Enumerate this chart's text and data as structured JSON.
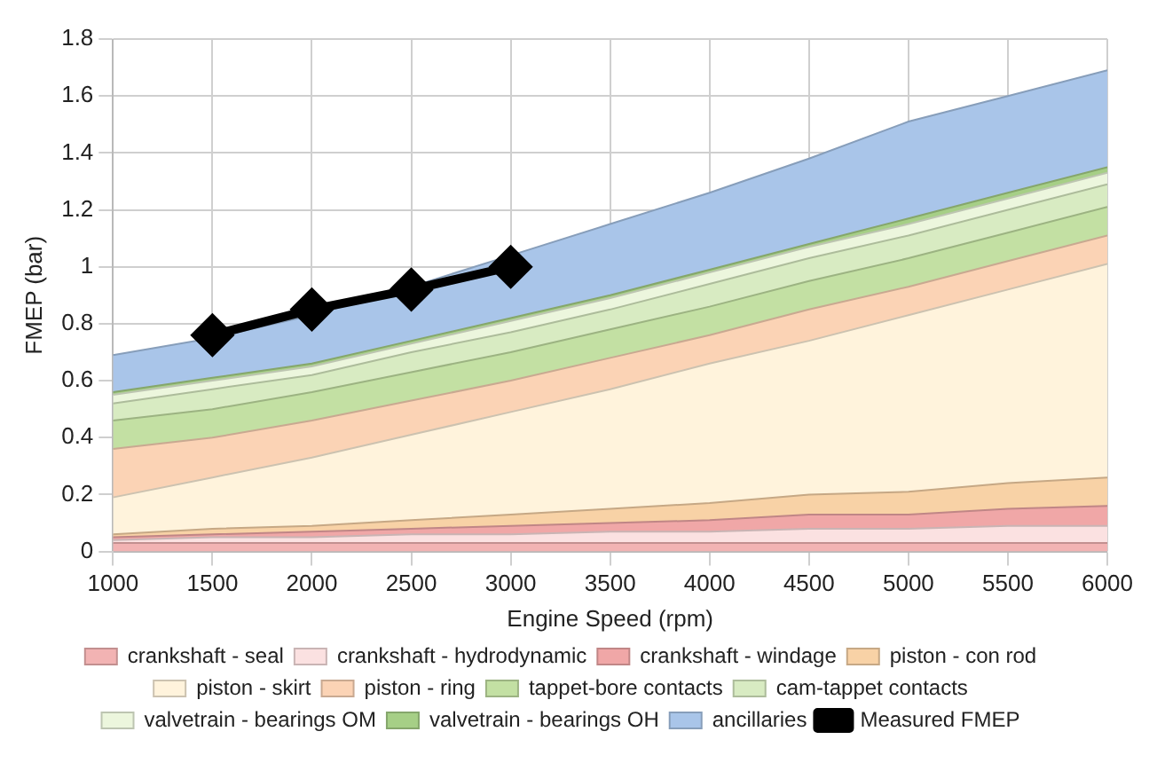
{
  "chart_data": {
    "type": "area",
    "stacked": true,
    "xlabel": "Engine Speed (rpm)",
    "ylabel": "FMEP (bar)",
    "x": [
      1000,
      1500,
      2000,
      2500,
      3000,
      3500,
      4000,
      4500,
      5000,
      5500,
      6000
    ],
    "xlim": [
      1000,
      6000
    ],
    "xticks": [
      1000,
      1500,
      2000,
      2500,
      3000,
      3500,
      4000,
      4500,
      5000,
      5500,
      6000
    ],
    "ylim": [
      0,
      1.8
    ],
    "yticks": [
      0,
      0.2,
      0.4,
      0.6,
      0.8,
      1,
      1.2,
      1.4,
      1.6,
      1.8
    ],
    "grid": true,
    "legend": "bottom",
    "series": [
      {
        "name": "crankshaft - seal",
        "color": "#f2b3b3",
        "values": [
          0.03,
          0.03,
          0.03,
          0.03,
          0.03,
          0.03,
          0.03,
          0.03,
          0.03,
          0.03,
          0.03
        ]
      },
      {
        "name": "crankshaft - hydrodynamic",
        "color": "#fbe1e1",
        "values": [
          0.01,
          0.02,
          0.02,
          0.03,
          0.03,
          0.04,
          0.04,
          0.05,
          0.05,
          0.06,
          0.06
        ]
      },
      {
        "name": "crankshaft - windage",
        "color": "#f0a7a7",
        "values": [
          0.01,
          0.01,
          0.02,
          0.02,
          0.03,
          0.03,
          0.04,
          0.05,
          0.05,
          0.06,
          0.07
        ]
      },
      {
        "name": "piston - con rod",
        "color": "#f8d2a6",
        "values": [
          0.01,
          0.02,
          0.02,
          0.03,
          0.04,
          0.05,
          0.06,
          0.07,
          0.08,
          0.09,
          0.1
        ]
      },
      {
        "name": "piston - skirt",
        "color": "#fff3dc",
        "values": [
          0.13,
          0.18,
          0.24,
          0.3,
          0.36,
          0.42,
          0.49,
          0.54,
          0.62,
          0.68,
          0.75
        ]
      },
      {
        "name": "piston - ring",
        "color": "#fbd3b5",
        "values": [
          0.17,
          0.14,
          0.13,
          0.12,
          0.11,
          0.11,
          0.1,
          0.11,
          0.1,
          0.1,
          0.1
        ]
      },
      {
        "name": "tappet-bore contacts",
        "color": "#c3e0a3",
        "values": [
          0.1,
          0.1,
          0.1,
          0.1,
          0.1,
          0.1,
          0.1,
          0.1,
          0.1,
          0.1,
          0.1
        ]
      },
      {
        "name": "cam-tappet contacts",
        "color": "#d8ebc2",
        "values": [
          0.06,
          0.07,
          0.06,
          0.07,
          0.07,
          0.07,
          0.08,
          0.08,
          0.08,
          0.08,
          0.08
        ]
      },
      {
        "name": "valvetrain - bearings OM",
        "color": "#ecf6dd",
        "values": [
          0.03,
          0.03,
          0.03,
          0.03,
          0.04,
          0.04,
          0.04,
          0.04,
          0.04,
          0.04,
          0.04
        ]
      },
      {
        "name": "valvetrain - bearings OH",
        "color": "#a6cf86",
        "values": [
          0.01,
          0.01,
          0.01,
          0.01,
          0.01,
          0.01,
          0.01,
          0.01,
          0.02,
          0.02,
          0.02
        ]
      },
      {
        "name": "ancillaries",
        "color": "#a9c5e9",
        "values": [
          0.13,
          0.14,
          0.17,
          0.19,
          0.22,
          0.25,
          0.27,
          0.3,
          0.34,
          0.34,
          0.34
        ]
      },
      {
        "name": "Measured FMEP",
        "type": "line",
        "color": "#000000",
        "marker": "diamond",
        "x": [
          1500,
          2000,
          2500,
          3000
        ],
        "values": [
          0.76,
          0.85,
          0.92,
          1.0
        ]
      }
    ]
  }
}
